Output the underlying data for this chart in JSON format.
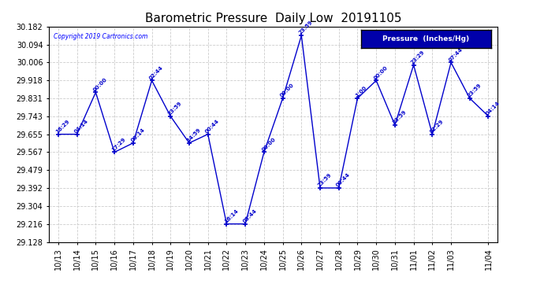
{
  "title": "Barometric Pressure  Daily Low  20191105",
  "copyright": "Copyright 2019 Cartronics.com",
  "legend_label": "Pressure  (Inches/Hg)",
  "x_labels": [
    "10/13",
    "10/14",
    "10/15",
    "10/16",
    "10/17",
    "10/18",
    "10/19",
    "10/20",
    "10/21",
    "10/22",
    "10/23",
    "10/24",
    "10/25",
    "10/26",
    "10/27",
    "10/28",
    "10/29",
    "10/30",
    "10/31",
    "11/01",
    "11/02",
    "11/03",
    "11/03",
    "11/04"
  ],
  "x_indices": [
    0,
    1,
    2,
    3,
    4,
    5,
    6,
    7,
    8,
    9,
    10,
    11,
    12,
    13,
    14,
    15,
    16,
    17,
    18,
    19,
    20,
    21,
    22,
    23
  ],
  "y_values": [
    29.655,
    29.655,
    29.86,
    29.567,
    29.612,
    29.918,
    29.743,
    29.612,
    29.655,
    29.216,
    29.216,
    29.567,
    29.831,
    30.138,
    29.392,
    29.392,
    29.831,
    29.918,
    29.7,
    29.994,
    29.655,
    30.006,
    29.831,
    29.743
  ],
  "time_labels": [
    "16:29",
    "04:14",
    "00:00",
    "17:29",
    "00:14",
    "02:44",
    "23:59",
    "14:59",
    "00:44",
    "16:14",
    "05:44",
    "00:00",
    "00:00",
    "23:59",
    "23:59",
    "00:44",
    "1:00",
    "00:00",
    "23:59",
    "23:29",
    "02:29",
    "07:44",
    "23:59",
    "04:14"
  ],
  "ylim": [
    29.128,
    30.182
  ],
  "yticks": [
    29.128,
    29.216,
    29.304,
    29.392,
    29.479,
    29.567,
    29.655,
    29.743,
    29.831,
    29.918,
    30.006,
    30.094,
    30.182
  ],
  "line_color": "#0000CC",
  "marker_color": "#0000CC",
  "background_color": "#FFFFFF",
  "grid_color": "#CCCCCC",
  "title_fontsize": 11,
  "tick_fontsize": 7,
  "legend_bg": "#0000AA",
  "legend_fg": "#FFFFFF"
}
